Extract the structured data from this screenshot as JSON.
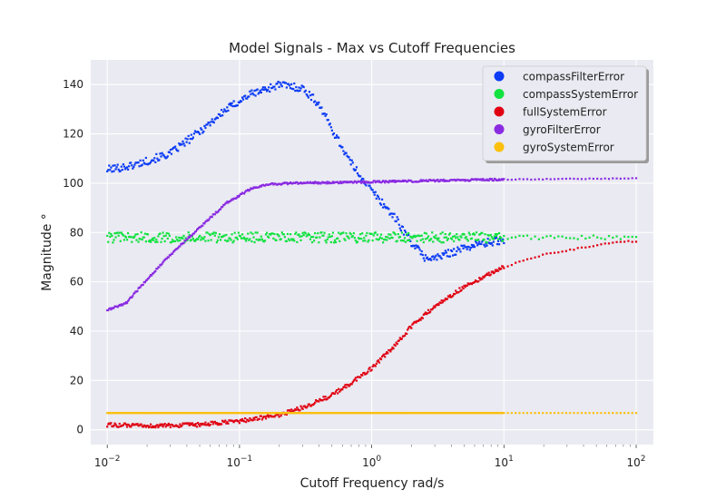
{
  "chart_data": {
    "type": "scatter",
    "title": "Model Signals - Max vs Cutoff Frequencies",
    "xlabel": "Cutoff Frequency rad/s",
    "ylabel": "Magnitude °",
    "xscale": "log",
    "xlim": [
      0.0075,
      135
    ],
    "ylim": [
      -6,
      150
    ],
    "x_ticks": [
      {
        "value": 0.01,
        "base": "10",
        "exp": "−2"
      },
      {
        "value": 0.1,
        "base": "10",
        "exp": "−1"
      },
      {
        "value": 1,
        "base": "10",
        "exp": "0"
      },
      {
        "value": 10,
        "base": "10",
        "exp": "1"
      },
      {
        "value": 100,
        "base": "10",
        "exp": "2"
      }
    ],
    "y_ticks": [
      0,
      20,
      40,
      60,
      80,
      100,
      120,
      140
    ],
    "grid": true,
    "legend_position": "top-right",
    "series": [
      {
        "name": "compassFilterError",
        "color": "#0b3bf5",
        "noise": 1.0,
        "points": [
          [
            0.01,
            105.5
          ],
          [
            0.015,
            107
          ],
          [
            0.02,
            109
          ],
          [
            0.03,
            112
          ],
          [
            0.05,
            121
          ],
          [
            0.08,
            130
          ],
          [
            0.12,
            136
          ],
          [
            0.2,
            140
          ],
          [
            0.3,
            138.5
          ],
          [
            0.4,
            132
          ],
          [
            0.5,
            122
          ],
          [
            0.7,
            108
          ],
          [
            1.0,
            97
          ],
          [
            1.5,
            86
          ],
          [
            2.0,
            76
          ],
          [
            2.5,
            70
          ],
          [
            3.0,
            69.5
          ],
          [
            4.0,
            72
          ],
          [
            6.0,
            75
          ],
          [
            10,
            77
          ]
        ]
      },
      {
        "name": "compassSystemError",
        "color": "#11e23f",
        "noise": 1.3,
        "points": [
          [
            0.01,
            78
          ],
          [
            0.1,
            78
          ],
          [
            1.0,
            78
          ],
          [
            10,
            78
          ],
          [
            100,
            78
          ]
        ]
      },
      {
        "name": "fullSystemError",
        "color": "#e00012",
        "noise": 0.5,
        "points": [
          [
            0.01,
            2
          ],
          [
            0.02,
            1.5
          ],
          [
            0.05,
            2
          ],
          [
            0.1,
            3.5
          ],
          [
            0.2,
            6
          ],
          [
            0.3,
            9
          ],
          [
            0.5,
            14
          ],
          [
            0.7,
            19
          ],
          [
            1.0,
            25
          ],
          [
            1.5,
            34
          ],
          [
            2.0,
            42
          ],
          [
            3.0,
            50
          ],
          [
            5.0,
            58
          ],
          [
            7.0,
            62
          ],
          [
            10,
            66
          ],
          [
            20,
            71
          ],
          [
            40,
            74
          ],
          [
            70,
            76
          ],
          [
            100,
            76.5
          ]
        ]
      },
      {
        "name": "gyroFilterError",
        "color": "#8a2be2",
        "noise": 0.25,
        "points": [
          [
            0.01,
            48.5
          ],
          [
            0.014,
            51.5
          ],
          [
            0.02,
            61
          ],
          [
            0.03,
            71
          ],
          [
            0.05,
            82
          ],
          [
            0.08,
            92
          ],
          [
            0.12,
            97.5
          ],
          [
            0.16,
            99.5
          ],
          [
            0.25,
            100
          ],
          [
            0.5,
            100.3
          ],
          [
            1,
            100.5
          ],
          [
            3,
            101
          ],
          [
            10,
            101.5
          ],
          [
            30,
            101.7
          ],
          [
            100,
            102
          ]
        ]
      },
      {
        "name": "gyroSystemError",
        "color": "#fbbf0c",
        "noise": 0.0,
        "points": [
          [
            0.01,
            6.8
          ],
          [
            100,
            6.8
          ]
        ]
      }
    ]
  }
}
